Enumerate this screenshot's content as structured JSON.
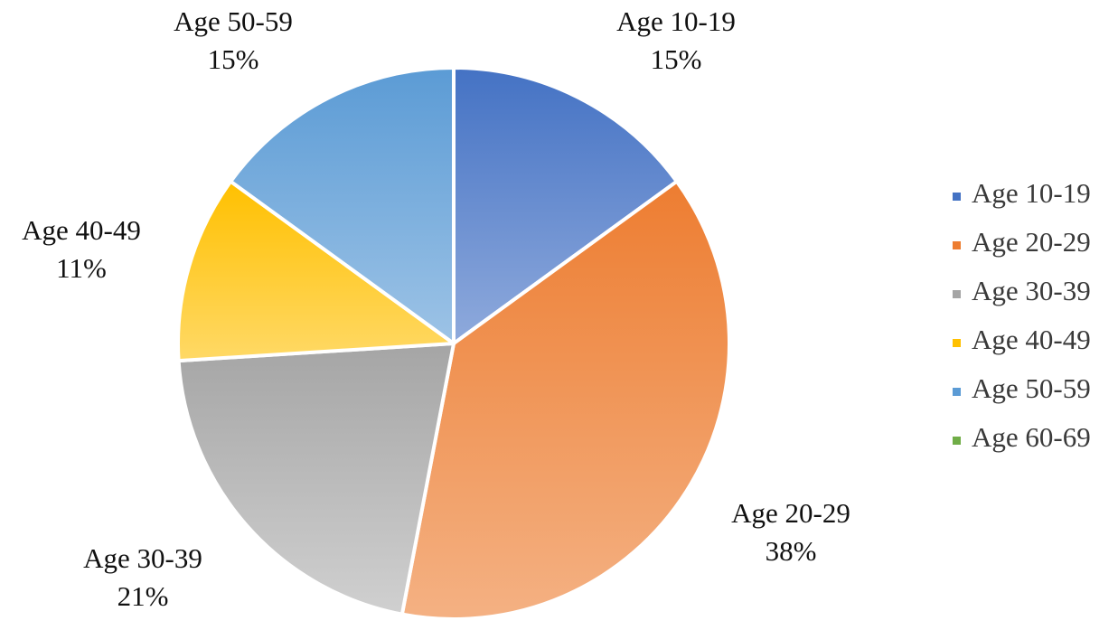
{
  "chart_data": {
    "type": "pie",
    "title": "",
    "slices": [
      {
        "label": "Age 10-19",
        "value": 15,
        "value_label": "15%",
        "color": "#4472c4",
        "color_light": "#8faadc"
      },
      {
        "label": "Age 20-29",
        "value": 38,
        "value_label": "38%",
        "color": "#ed7d31",
        "color_light": "#f4b183"
      },
      {
        "label": "Age 30-39",
        "value": 21,
        "value_label": "21%",
        "color": "#a5a5a5",
        "color_light": "#d0d0d0"
      },
      {
        "label": "Age 40-49",
        "value": 11,
        "value_label": "11%",
        "color": "#ffc000",
        "color_light": "#ffd966"
      },
      {
        "label": "Age 50-59",
        "value": 15,
        "value_label": "15%",
        "color": "#5b9bd5",
        "color_light": "#9dc3e6"
      },
      {
        "label": "Age 60-69",
        "value": 0,
        "value_label": "",
        "color": "#70ad47",
        "color_light": "#a9d18e"
      }
    ],
    "legend": {
      "position": "right",
      "entries": [
        "Age 10-19",
        "Age 20-29",
        "Age 30-39",
        "Age 40-49",
        "Age 50-59",
        "Age 60-69"
      ]
    },
    "start_angle": "12 o'clock",
    "direction": "clockwise"
  }
}
